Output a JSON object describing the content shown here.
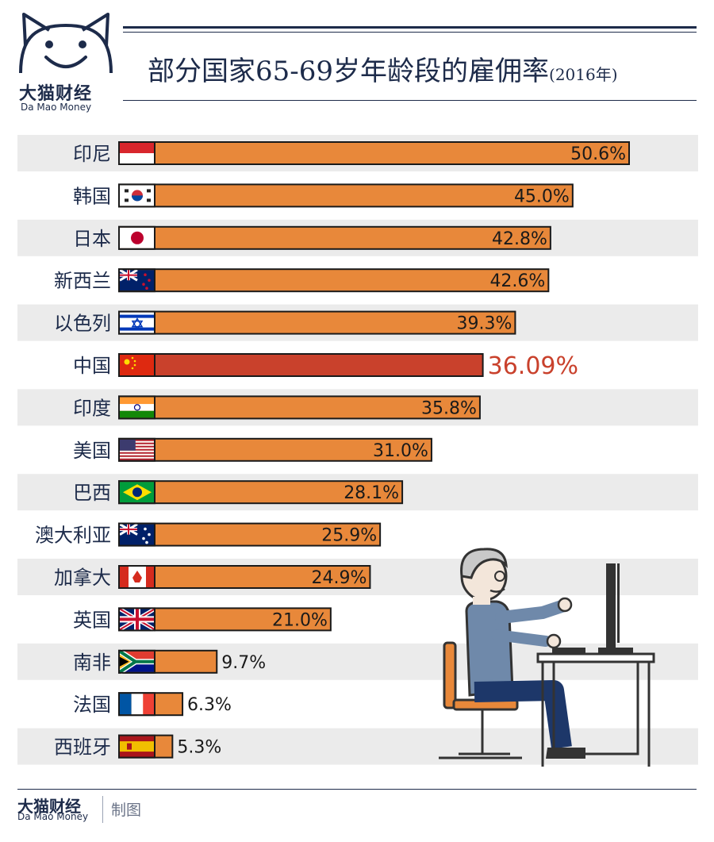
{
  "brand": {
    "name_cn": "大猫财经",
    "name_en": "Da Mao Money"
  },
  "title": "部分国家65-69岁年龄段的雇佣率",
  "subtitle": "(2016年)",
  "footer": {
    "note": "制图"
  },
  "chart_data": {
    "type": "bar",
    "orientation": "horizontal",
    "categories": [
      "印尼",
      "韩国",
      "日本",
      "新西兰",
      "以色列",
      "中国",
      "印度",
      "美国",
      "巴西",
      "澳大利亚",
      "加拿大",
      "英国",
      "南非",
      "法国",
      "西班牙"
    ],
    "values": [
      50.6,
      45.0,
      42.8,
      42.6,
      39.3,
      36.09,
      35.8,
      31.0,
      28.1,
      25.9,
      24.9,
      21.0,
      9.7,
      6.3,
      5.3
    ],
    "labels": [
      "50.6%",
      "45.0%",
      "42.8%",
      "42.6%",
      "39.3%",
      "36.09%",
      "35.8%",
      "31.0%",
      "28.1%",
      "25.9%",
      "24.9%",
      "21.0%",
      "9.7%",
      "6.3%",
      "5.3%"
    ],
    "highlight_index": 5,
    "xlim": [
      0,
      50.6
    ],
    "grid": false,
    "colors": {
      "bar": "#e8883a",
      "highlight": "#c9412c",
      "stripe": "#ebebeb",
      "text": "#1d2b4a"
    }
  }
}
